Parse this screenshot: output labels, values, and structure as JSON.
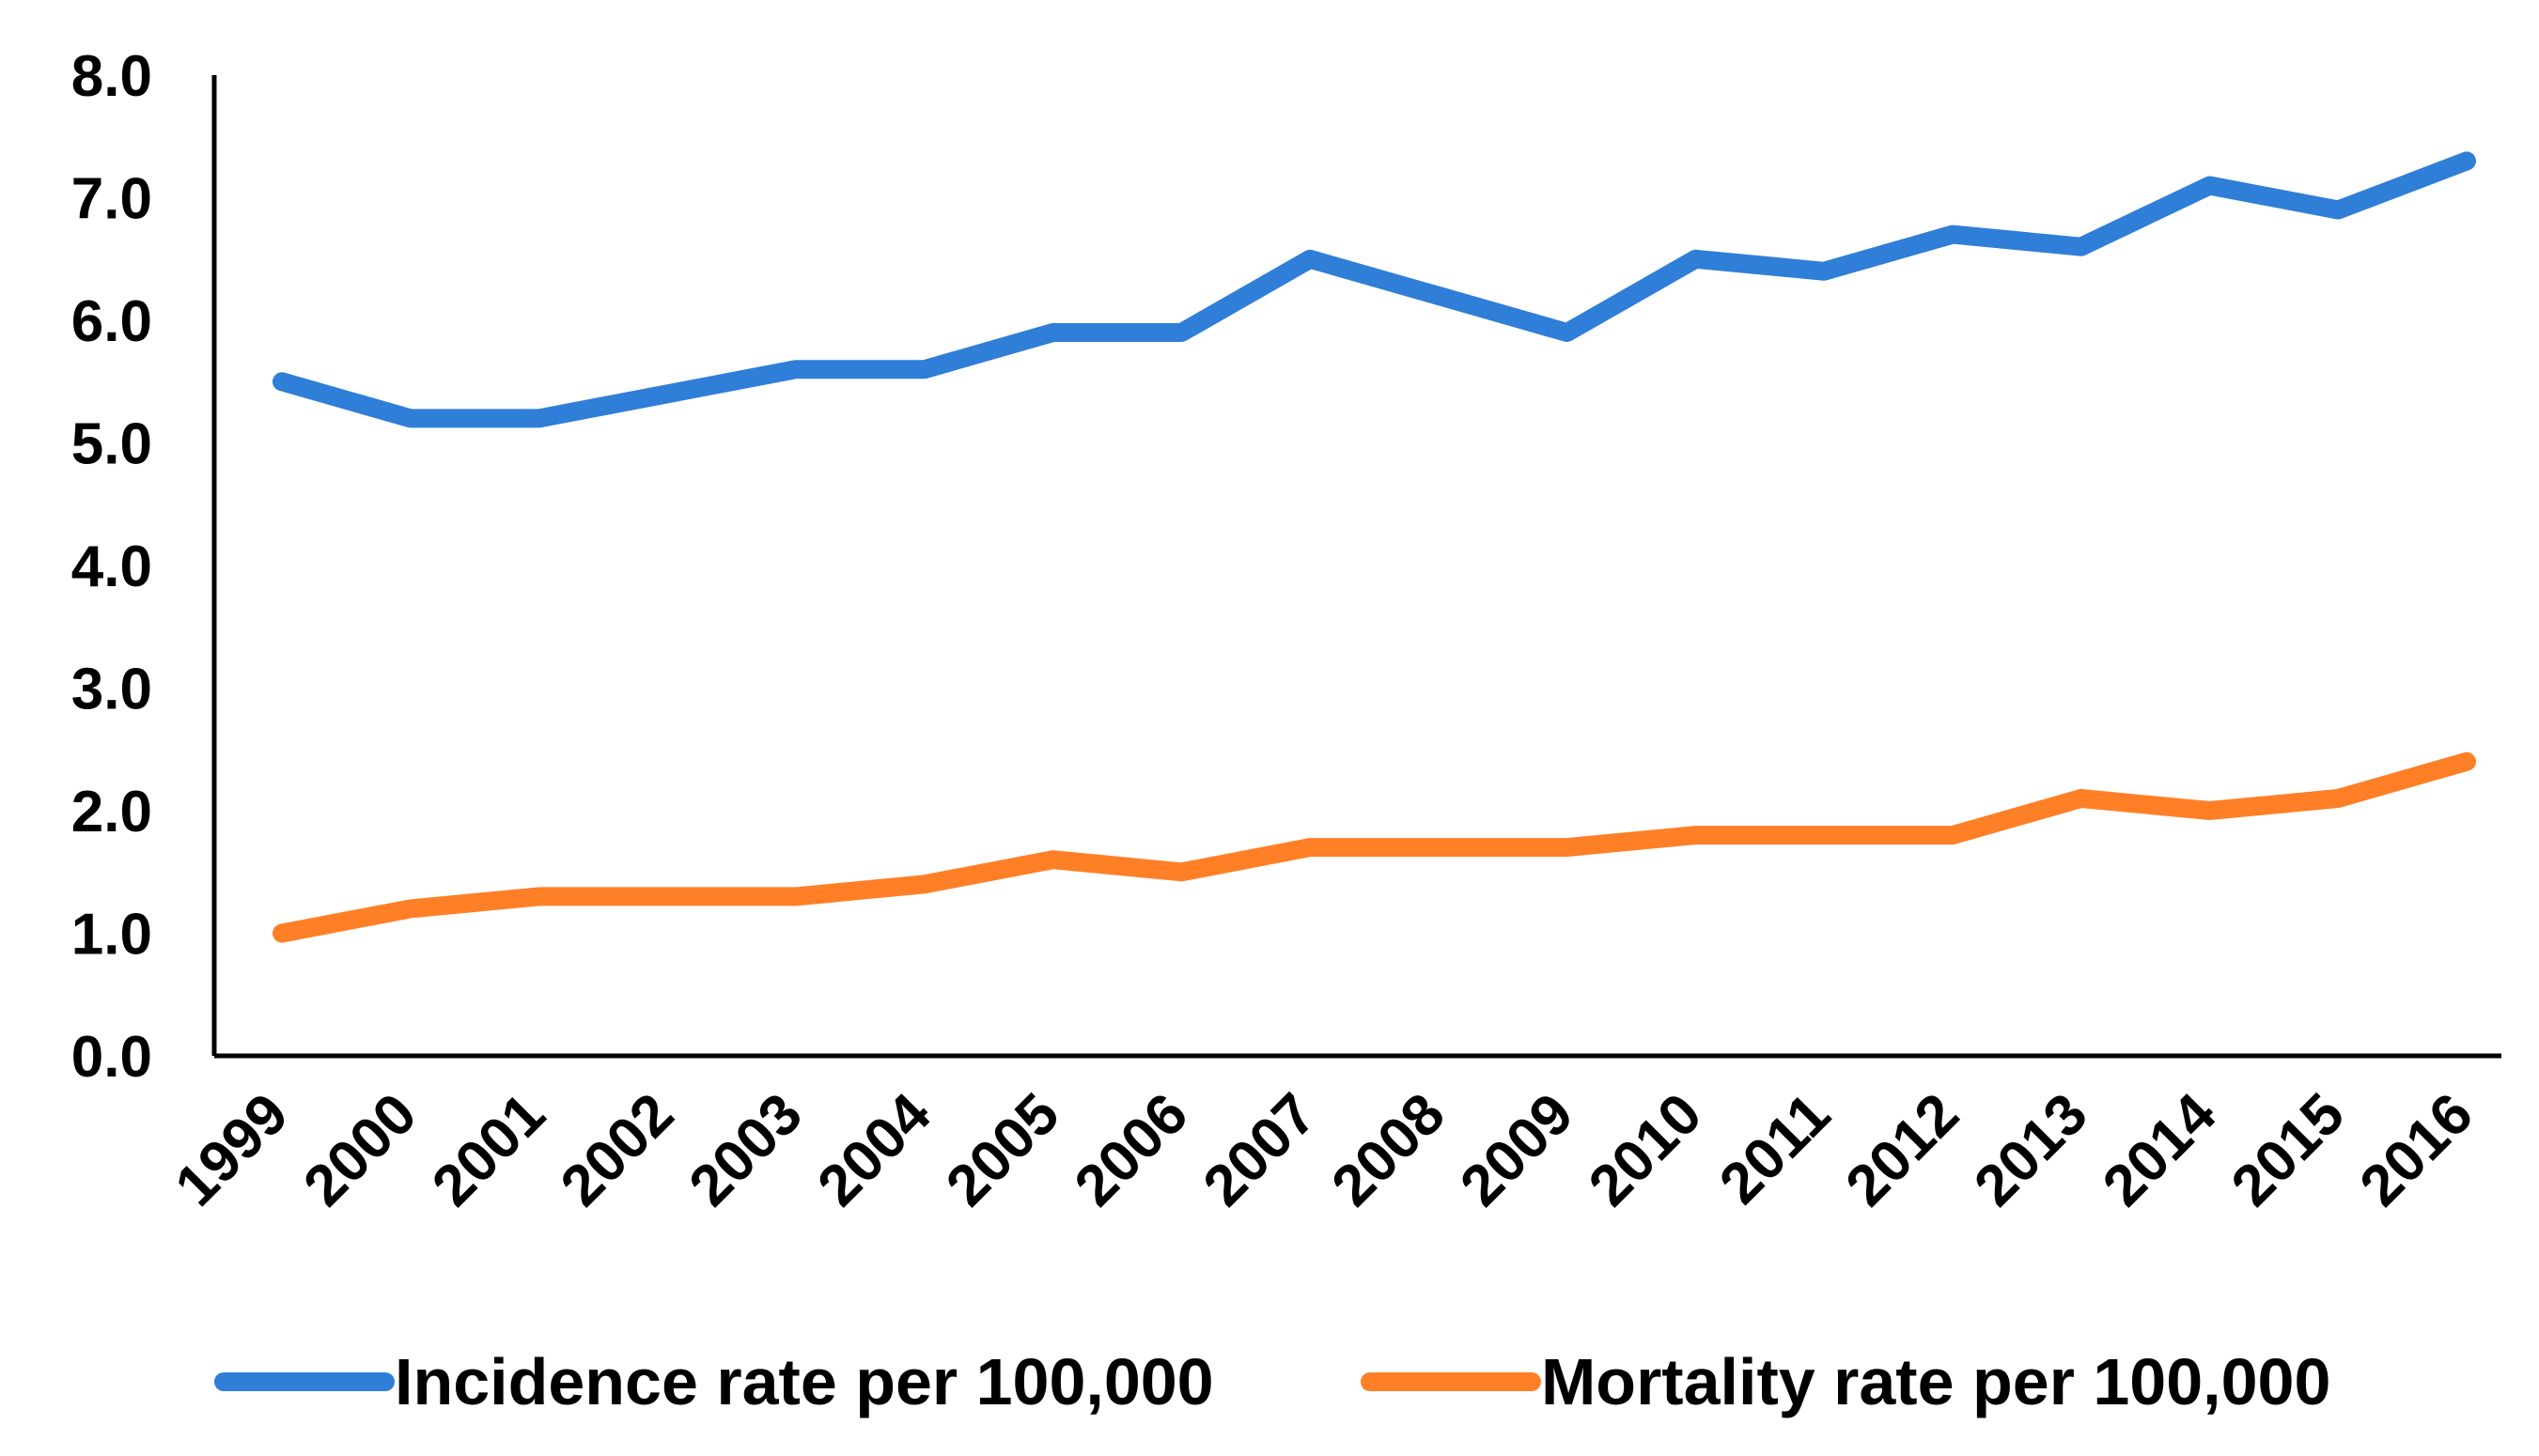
{
  "chart_data": {
    "type": "line",
    "title": "",
    "xlabel": "",
    "ylabel": "",
    "categories": [
      "1999",
      "2000",
      "2001",
      "2002",
      "2003",
      "2004",
      "2005",
      "2006",
      "2007",
      "2008",
      "2009",
      "2010",
      "2011",
      "2012",
      "2013",
      "2014",
      "2015",
      "2016"
    ],
    "ylim": [
      0,
      8
    ],
    "yticks": [
      "0.0",
      "1.0",
      "2.0",
      "3.0",
      "4.0",
      "5.0",
      "6.0",
      "7.0",
      "8.0"
    ],
    "grid": false,
    "legend_position": "bottom",
    "series": [
      {
        "name": "Incidence rate per 100,000",
        "color": "#2f7ed8",
        "values": [
          5.5,
          5.2,
          5.2,
          5.4,
          5.6,
          5.6,
          5.9,
          5.9,
          6.5,
          6.2,
          5.9,
          6.5,
          6.4,
          6.7,
          6.6,
          7.1,
          6.9,
          7.3
        ]
      },
      {
        "name": "Mortality rate per 100,000",
        "color": "#ff7f27",
        "values": [
          1.0,
          1.2,
          1.3,
          1.3,
          1.3,
          1.4,
          1.6,
          1.5,
          1.7,
          1.7,
          1.7,
          1.8,
          1.8,
          1.8,
          2.1,
          2.0,
          2.1,
          2.4
        ]
      }
    ]
  }
}
